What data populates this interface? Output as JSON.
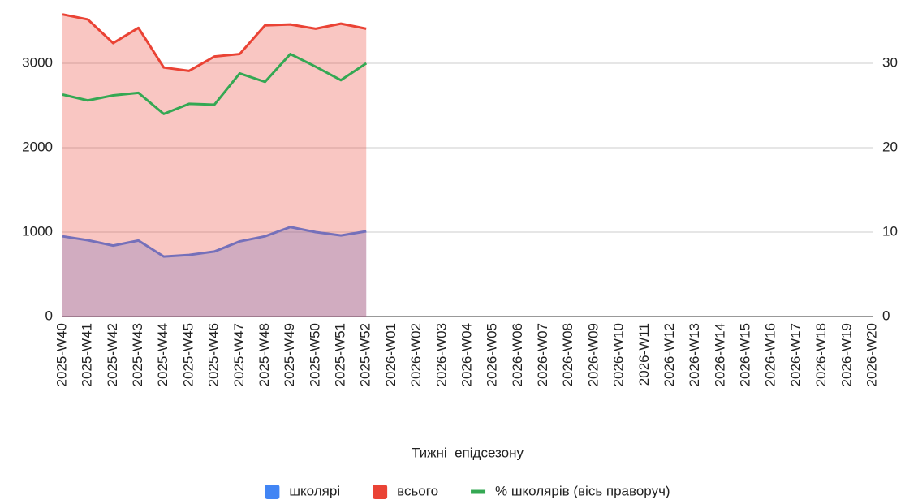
{
  "chart_data": {
    "type": "line",
    "x_label": "Тижні  епідсезону",
    "categories": [
      "2025-W40",
      "2025-W41",
      "2025-W42",
      "2025-W43",
      "2025-W44",
      "2025-W45",
      "2025-W46",
      "2025-W47",
      "2025-W48",
      "2025-W49",
      "2025-W50",
      "2025-W51",
      "2025-W52",
      "2026-W01",
      "2026-W02",
      "2026-W03",
      "2026-W04",
      "2026-W05",
      "2026-W06",
      "2026-W07",
      "2026-W08",
      "2026-W09",
      "2026-W10",
      "2026-W11",
      "2026-W12",
      "2026-W13",
      "2026-W14",
      "2026-W15",
      "2026-W16",
      "2026-W17",
      "2026-W18",
      "2026-W19",
      "2026-W20"
    ],
    "series": [
      {
        "name": "школярі",
        "color": "#4285f4",
        "type": "area",
        "values": [
          950,
          904,
          840,
          900,
          710,
          730,
          770,
          890,
          950,
          1060,
          1000,
          960,
          1010,
          null,
          null,
          null,
          null,
          null,
          null,
          null,
          null,
          null,
          null,
          null,
          null,
          null,
          null,
          null,
          null,
          null,
          null,
          null,
          null
        ]
      },
      {
        "name": "всього",
        "color": "#ea4335",
        "type": "area",
        "values": [
          3580,
          3520,
          3240,
          3420,
          2950,
          2910,
          3080,
          3110,
          3450,
          3460,
          3410,
          3470,
          3410,
          null,
          null,
          null,
          null,
          null,
          null,
          null,
          null,
          null,
          null,
          null,
          null,
          null,
          null,
          null,
          null,
          null,
          null,
          null,
          null
        ]
      },
      {
        "name": "% школярів (вісь праворуч)",
        "color": "#34a853",
        "type": "line",
        "axis": "y2",
        "values": [
          26.3,
          25.6,
          26.2,
          26.5,
          24.0,
          25.2,
          25.1,
          28.8,
          27.8,
          31.1,
          29.6,
          28.0,
          30.0,
          null,
          null,
          null,
          null,
          null,
          null,
          null,
          null,
          null,
          null,
          null,
          null,
          null,
          null,
          null,
          null,
          null,
          null,
          null,
          null
        ]
      }
    ],
    "ylim": [
      0,
      3600
    ],
    "yticks": [
      0,
      1000,
      2000,
      3000
    ],
    "y2lim": [
      0,
      36
    ],
    "y2ticks": [
      0,
      10,
      20,
      30
    ],
    "grid": true,
    "legend": "bottom"
  }
}
